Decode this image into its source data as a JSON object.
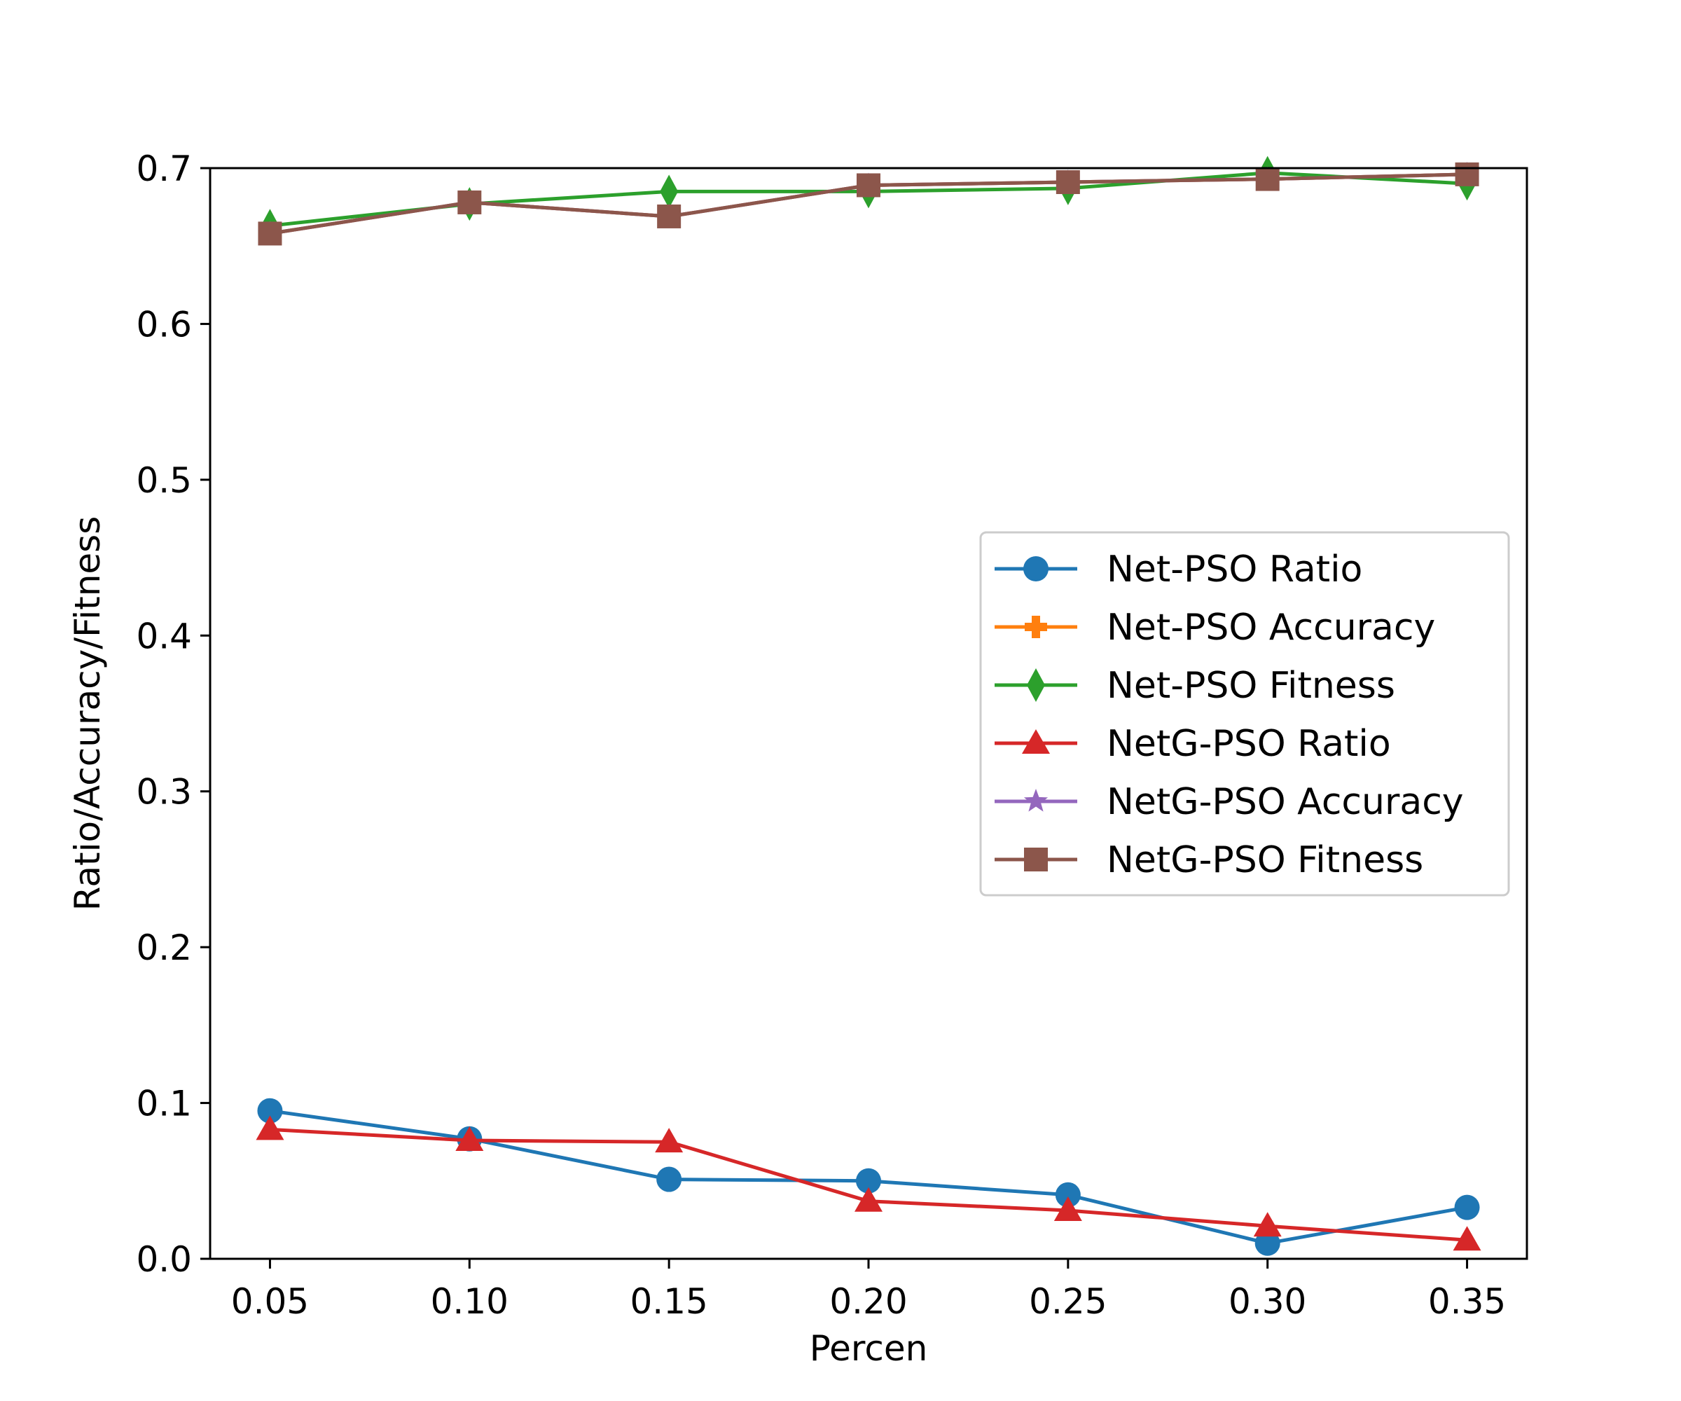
{
  "chart_data": {
    "type": "line",
    "title": "",
    "xlabel": "Percen",
    "ylabel": "Ratio/Accuracy/Fitness",
    "x": [
      0.05,
      0.1,
      0.15,
      0.2,
      0.25,
      0.3,
      0.35
    ],
    "xlim": [
      0.035,
      0.365
    ],
    "ylim": [
      0.0,
      0.7
    ],
    "x_ticks": [
      0.05,
      0.1,
      0.15,
      0.2,
      0.25,
      0.3,
      0.35
    ],
    "x_tick_labels": [
      "0.05",
      "0.10",
      "0.15",
      "0.20",
      "0.25",
      "0.30",
      "0.35"
    ],
    "y_ticks": [
      0.0,
      0.1,
      0.2,
      0.3,
      0.4,
      0.5,
      0.6,
      0.7
    ],
    "y_tick_labels": [
      "0.0",
      "0.1",
      "0.2",
      "0.3",
      "0.4",
      "0.5",
      "0.6",
      "0.7"
    ],
    "grid": false,
    "legend_position": "center-right",
    "series": [
      {
        "name": "Net-PSO Ratio",
        "color": "#1f77b4",
        "marker": "circle",
        "values": [
          0.095,
          0.077,
          0.051,
          0.05,
          0.041,
          0.01,
          0.033
        ]
      },
      {
        "name": "Net-PSO Accuracy",
        "color": "#ff7f0e",
        "marker": "plus",
        "values": [
          0.658,
          0.678,
          0.669,
          0.689,
          0.691,
          0.693,
          0.696
        ]
      },
      {
        "name": "Net-PSO Fitness",
        "color": "#2ca02c",
        "marker": "thin-diamond",
        "values": [
          0.663,
          0.677,
          0.685,
          0.685,
          0.687,
          0.697,
          0.69
        ]
      },
      {
        "name": "NetG-PSO Ratio",
        "color": "#d62728",
        "marker": "triangle",
        "values": [
          0.083,
          0.076,
          0.075,
          0.037,
          0.031,
          0.021,
          0.012
        ]
      },
      {
        "name": "NetG-PSO Accuracy",
        "color": "#9467bd",
        "marker": "star",
        "values": [
          0.658,
          0.678,
          0.669,
          0.689,
          0.691,
          0.693,
          0.696
        ]
      },
      {
        "name": "NetG-PSO Fitness",
        "color": "#8c564b",
        "marker": "square",
        "values": [
          0.658,
          0.678,
          0.669,
          0.689,
          0.691,
          0.693,
          0.696
        ]
      }
    ]
  }
}
